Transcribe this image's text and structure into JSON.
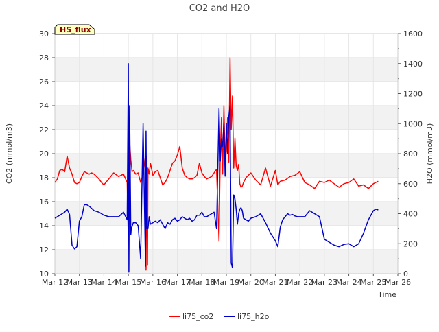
{
  "chart_data": {
    "type": "line",
    "title": "CO2 and H2O",
    "xlabel": "Time",
    "ylabel": "CO2 (mmol/m3)",
    "ylabel_right": "H2O (mmol/m3)",
    "xlim": [
      12,
      26
    ],
    "ylim": [
      10,
      30
    ],
    "ylim_right": [
      0,
      1600
    ],
    "x_ticks": [
      {
        "value": 12,
        "label": "Mar 12"
      },
      {
        "value": 13,
        "label": "Mar 13"
      },
      {
        "value": 14,
        "label": "Mar 14"
      },
      {
        "value": 15,
        "label": "Mar 15"
      },
      {
        "value": 16,
        "label": "Mar 16"
      },
      {
        "value": 17,
        "label": "Mar 17"
      },
      {
        "value": 18,
        "label": "Mar 18"
      },
      {
        "value": 19,
        "label": "Mar 19"
      },
      {
        "value": 20,
        "label": "Mar 20"
      },
      {
        "value": 21,
        "label": "Mar 21"
      },
      {
        "value": 22,
        "label": "Mar 22"
      },
      {
        "value": 23,
        "label": "Mar 23"
      },
      {
        "value": 24,
        "label": "Mar 24"
      },
      {
        "value": 25,
        "label": "Mar 25"
      },
      {
        "value": 26,
        "label": "Mar 26"
      }
    ],
    "y_ticks": [
      10,
      12,
      14,
      16,
      18,
      20,
      22,
      24,
      26,
      28,
      30
    ],
    "y_ticks_right": [
      0,
      200,
      400,
      600,
      800,
      1000,
      1200,
      1400,
      1600
    ],
    "grid": true,
    "banded_background": true,
    "annotation": "HS_flux",
    "legend_position": "bottom-center",
    "series": [
      {
        "name": "li75_co2",
        "axis": "left",
        "color": "#ff0000",
        "x": [
          12.0,
          12.1,
          12.2,
          12.3,
          12.4,
          12.5,
          12.6,
          12.7,
          12.8,
          12.9,
          13.0,
          13.1,
          13.2,
          13.3,
          13.4,
          13.5,
          13.6,
          13.7,
          13.8,
          13.9,
          14.0,
          14.2,
          14.4,
          14.6,
          14.8,
          14.95,
          15.0,
          15.05,
          15.1,
          15.15,
          15.2,
          15.3,
          15.4,
          15.5,
          15.6,
          15.7,
          15.72,
          15.75,
          15.78,
          15.8,
          15.85,
          15.9,
          16.0,
          16.1,
          16.2,
          16.3,
          16.4,
          16.5,
          16.6,
          16.7,
          16.8,
          16.9,
          17.0,
          17.1,
          17.2,
          17.3,
          17.4,
          17.5,
          17.6,
          17.7,
          17.8,
          17.9,
          18.0,
          18.1,
          18.2,
          18.3,
          18.4,
          18.5,
          18.6,
          18.7,
          18.75,
          18.8,
          18.85,
          18.9,
          18.95,
          19.0,
          19.05,
          19.1,
          19.15,
          19.2,
          19.25,
          19.3,
          19.35,
          19.4,
          19.45,
          19.5,
          19.55,
          19.6,
          19.65,
          19.7,
          19.8,
          19.9,
          20.0,
          20.2,
          20.4,
          20.6,
          20.8,
          21.0,
          21.1,
          21.2,
          21.4,
          21.6,
          21.8,
          22.0,
          22.2,
          22.4,
          22.6,
          22.8,
          23.0,
          23.2,
          23.4,
          23.6,
          23.8,
          24.0,
          24.2,
          24.4,
          24.6,
          24.8,
          25.0,
          25.1,
          25.2
        ],
        "values": [
          17.6,
          17.9,
          18.6,
          18.7,
          18.5,
          19.8,
          18.8,
          18.3,
          17.6,
          17.5,
          17.6,
          18.1,
          18.5,
          18.4,
          18.3,
          18.4,
          18.3,
          18.1,
          17.9,
          17.6,
          17.4,
          17.9,
          18.4,
          18.1,
          18.3,
          17.6,
          12.8,
          21.0,
          19.5,
          18.5,
          18.6,
          18.3,
          18.4,
          17.6,
          18.3,
          19.8,
          10.3,
          19.8,
          10.7,
          18.8,
          18.3,
          19.2,
          18.2,
          18.5,
          18.6,
          18.0,
          17.4,
          17.6,
          18.0,
          18.6,
          19.2,
          19.4,
          19.9,
          20.6,
          18.8,
          18.2,
          18.0,
          17.9,
          17.9,
          18.0,
          18.2,
          19.2,
          18.4,
          18.1,
          17.9,
          18.0,
          18.1,
          18.4,
          18.7,
          12.7,
          20.0,
          23.0,
          18.3,
          24.0,
          19.3,
          20.2,
          23.0,
          19.3,
          28.0,
          22.0,
          24.8,
          18.8,
          21.3,
          19.0,
          18.6,
          19.1,
          17.5,
          17.2,
          17.3,
          17.6,
          18.0,
          18.2,
          18.4,
          17.8,
          17.4,
          18.8,
          17.3,
          18.6,
          17.4,
          17.7,
          17.8,
          18.1,
          18.2,
          18.5,
          17.6,
          17.4,
          17.1,
          17.7,
          17.6,
          17.8,
          17.5,
          17.2,
          17.5,
          17.6,
          17.9,
          17.3,
          17.4,
          17.1,
          17.5,
          17.6,
          17.7
        ]
      },
      {
        "name": "li75_h2o",
        "axis": "right",
        "color": "#0000cc",
        "x": [
          12.0,
          12.1,
          12.2,
          12.3,
          12.4,
          12.5,
          12.6,
          12.7,
          12.8,
          12.9,
          13.0,
          13.1,
          13.2,
          13.3,
          13.4,
          13.5,
          13.6,
          13.7,
          13.8,
          13.9,
          14.0,
          14.2,
          14.4,
          14.6,
          14.8,
          14.95,
          15.0,
          15.02,
          15.05,
          15.1,
          15.12,
          15.2,
          15.3,
          15.4,
          15.5,
          15.6,
          15.7,
          15.72,
          15.75,
          15.78,
          15.8,
          15.85,
          15.9,
          16.0,
          16.1,
          16.2,
          16.3,
          16.4,
          16.5,
          16.6,
          16.7,
          16.8,
          16.9,
          17.0,
          17.1,
          17.2,
          17.3,
          17.4,
          17.5,
          17.6,
          17.7,
          17.8,
          17.9,
          18.0,
          18.1,
          18.2,
          18.3,
          18.4,
          18.5,
          18.6,
          18.7,
          18.75,
          18.8,
          18.85,
          18.9,
          18.95,
          19.0,
          19.05,
          19.1,
          19.15,
          19.2,
          19.25,
          19.3,
          19.35,
          19.4,
          19.45,
          19.5,
          19.55,
          19.6,
          19.65,
          19.7,
          19.8,
          19.9,
          20.0,
          20.2,
          20.4,
          20.6,
          20.8,
          21.0,
          21.1,
          21.2,
          21.3,
          21.4,
          21.5,
          21.6,
          21.7,
          21.8,
          21.9,
          22.0,
          22.2,
          22.4,
          22.6,
          22.8,
          23.0,
          23.2,
          23.3,
          23.4,
          23.6,
          23.8,
          24.0,
          24.2,
          24.4,
          24.6,
          24.8,
          25.0,
          25.1,
          25.2
        ],
        "values": [
          370,
          380,
          390,
          400,
          410,
          430,
          395,
          190,
          165,
          180,
          350,
          380,
          460,
          460,
          450,
          435,
          420,
          415,
          410,
          400,
          390,
          380,
          380,
          380,
          410,
          360,
          1400,
          10,
          1120,
          260,
          300,
          340,
          340,
          320,
          100,
          1000,
          50,
          950,
          300,
          310,
          300,
          380,
          330,
          340,
          350,
          340,
          360,
          330,
          300,
          340,
          330,
          360,
          370,
          350,
          360,
          380,
          370,
          360,
          370,
          350,
          360,
          390,
          390,
          410,
          380,
          380,
          390,
          400,
          410,
          300,
          1100,
          750,
          900,
          850,
          1000,
          650,
          1000,
          800,
          1050,
          1120,
          70,
          40,
          525,
          500,
          430,
          330,
          400,
          430,
          440,
          420,
          370,
          360,
          350,
          370,
          380,
          400,
          340,
          270,
          220,
          180,
          310,
          360,
          380,
          400,
          390,
          395,
          385,
          380,
          380,
          380,
          420,
          400,
          380,
          230,
          210,
          200,
          190,
          180,
          195,
          200,
          180,
          200,
          270,
          360,
          420,
          430,
          425
        ]
      }
    ]
  }
}
